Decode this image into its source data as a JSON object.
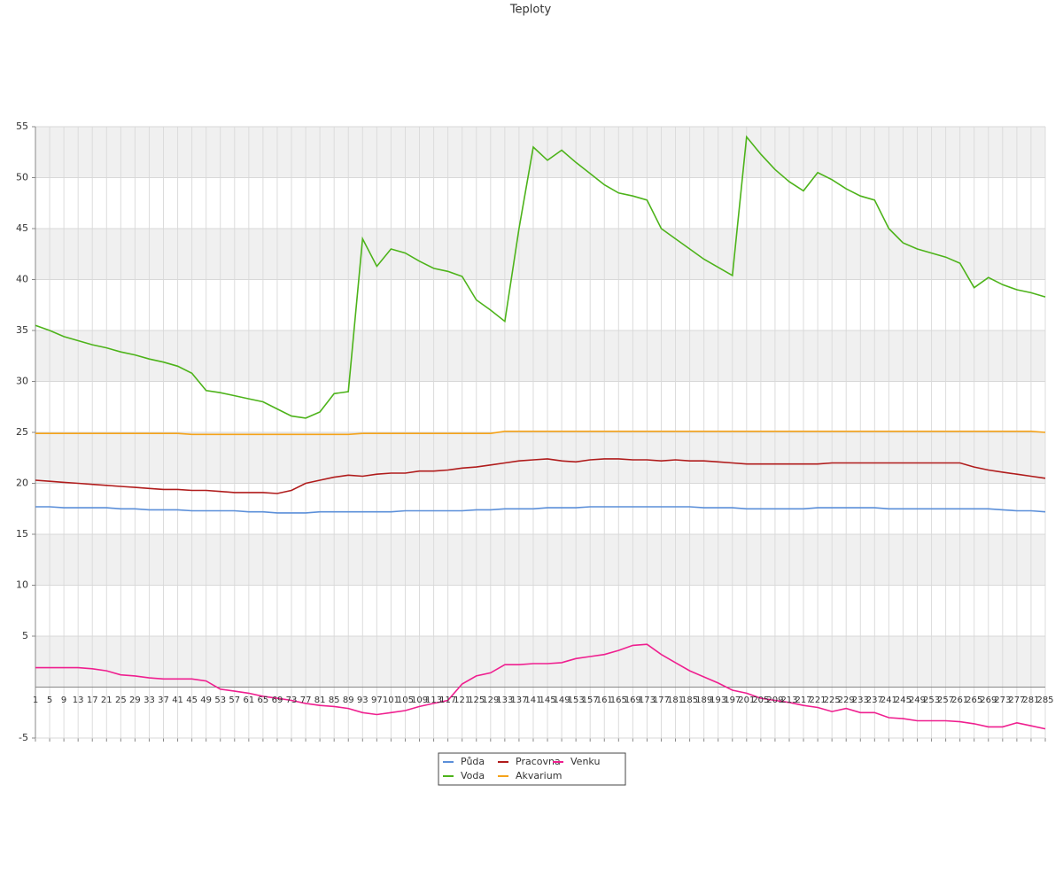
{
  "chart_data": {
    "type": "line",
    "title": "Teploty",
    "categories": [
      "1",
      "5",
      "9",
      "13",
      "17",
      "21",
      "25",
      "29",
      "33",
      "37",
      "41",
      "45",
      "49",
      "53",
      "57",
      "61",
      "65",
      "69",
      "73",
      "77",
      "81",
      "85",
      "89",
      "93",
      "97",
      "101",
      "105",
      "109",
      "113",
      "117",
      "121",
      "125",
      "129",
      "133",
      "137",
      "141",
      "145",
      "149",
      "153",
      "157",
      "161",
      "165",
      "169",
      "173",
      "177",
      "181",
      "185",
      "189",
      "193",
      "197",
      "201",
      "205",
      "209",
      "213",
      "217",
      "221",
      "225",
      "229",
      "233",
      "237",
      "241",
      "245",
      "249",
      "253",
      "257",
      "261",
      "265",
      "269",
      "273",
      "277",
      "281",
      "285"
    ],
    "series": [
      {
        "name": "Půda",
        "color": "#5b8fd9",
        "values": [
          17.7,
          17.7,
          17.6,
          17.6,
          17.6,
          17.6,
          17.5,
          17.5,
          17.4,
          17.4,
          17.4,
          17.3,
          17.3,
          17.3,
          17.3,
          17.2,
          17.2,
          17.1,
          17.1,
          17.1,
          17.2,
          17.2,
          17.2,
          17.2,
          17.2,
          17.2,
          17.3,
          17.3,
          17.3,
          17.3,
          17.3,
          17.4,
          17.4,
          17.5,
          17.5,
          17.5,
          17.6,
          17.6,
          17.6,
          17.7,
          17.7,
          17.7,
          17.7,
          17.7,
          17.7,
          17.7,
          17.7,
          17.6,
          17.6,
          17.6,
          17.5,
          17.5,
          17.5,
          17.5,
          17.5,
          17.6,
          17.6,
          17.6,
          17.6,
          17.6,
          17.5,
          17.5,
          17.5,
          17.5,
          17.5,
          17.5,
          17.5,
          17.5,
          17.4,
          17.3,
          17.3,
          17.2
        ]
      },
      {
        "name": "Voda",
        "color": "#4db31a",
        "values": [
          35.5,
          35.0,
          34.4,
          34.0,
          33.6,
          33.3,
          32.9,
          32.6,
          32.2,
          31.9,
          31.5,
          30.8,
          29.1,
          28.9,
          28.6,
          28.3,
          28.0,
          27.3,
          26.6,
          26.4,
          27.0,
          28.8,
          29.0,
          44.0,
          41.3,
          43.0,
          42.6,
          41.8,
          41.1,
          40.8,
          40.3,
          38.0,
          37.0,
          35.9,
          45.0,
          53.0,
          51.7,
          52.7,
          51.5,
          50.4,
          49.3,
          48.5,
          48.2,
          47.8,
          45.0,
          44.0,
          43.0,
          42.0,
          41.2,
          40.4,
          54.0,
          52.3,
          50.8,
          49.6,
          48.7,
          50.5,
          49.8,
          48.9,
          48.2,
          47.8,
          45.0,
          43.6,
          43.0,
          42.6,
          42.2,
          41.6,
          39.2,
          40.2,
          39.5,
          39.0,
          38.7,
          38.3
        ]
      },
      {
        "name": "Pracovna",
        "color": "#b01c1c",
        "values": [
          20.3,
          20.2,
          20.1,
          20.0,
          19.9,
          19.8,
          19.7,
          19.6,
          19.5,
          19.4,
          19.4,
          19.3,
          19.3,
          19.2,
          19.1,
          19.1,
          19.1,
          19.0,
          19.3,
          20.0,
          20.3,
          20.6,
          20.8,
          20.7,
          20.9,
          21.0,
          21.0,
          21.2,
          21.2,
          21.3,
          21.5,
          21.6,
          21.8,
          22.0,
          22.2,
          22.3,
          22.4,
          22.2,
          22.1,
          22.3,
          22.4,
          22.4,
          22.3,
          22.3,
          22.2,
          22.3,
          22.2,
          22.2,
          22.1,
          22.0,
          21.9,
          21.9,
          21.9,
          21.9,
          21.9,
          21.9,
          22.0,
          22.0,
          22.0,
          22.0,
          22.0,
          22.0,
          22.0,
          22.0,
          22.0,
          22.0,
          21.6,
          21.3,
          21.1,
          20.9,
          20.7,
          20.5
        ]
      },
      {
        "name": "Akvarium",
        "color": "#f5a31a",
        "values": [
          24.9,
          24.9,
          24.9,
          24.9,
          24.9,
          24.9,
          24.9,
          24.9,
          24.9,
          24.9,
          24.9,
          24.8,
          24.8,
          24.8,
          24.8,
          24.8,
          24.8,
          24.8,
          24.8,
          24.8,
          24.8,
          24.8,
          24.8,
          24.9,
          24.9,
          24.9,
          24.9,
          24.9,
          24.9,
          24.9,
          24.9,
          24.9,
          24.9,
          25.1,
          25.1,
          25.1,
          25.1,
          25.1,
          25.1,
          25.1,
          25.1,
          25.1,
          25.1,
          25.1,
          25.1,
          25.1,
          25.1,
          25.1,
          25.1,
          25.1,
          25.1,
          25.1,
          25.1,
          25.1,
          25.1,
          25.1,
          25.1,
          25.1,
          25.1,
          25.1,
          25.1,
          25.1,
          25.1,
          25.1,
          25.1,
          25.1,
          25.1,
          25.1,
          25.1,
          25.1,
          25.1,
          25.0
        ]
      },
      {
        "name": "Venku",
        "color": "#ef1f8f",
        "values": [
          1.9,
          1.9,
          1.9,
          1.9,
          1.8,
          1.6,
          1.2,
          1.1,
          0.9,
          0.8,
          0.8,
          0.8,
          0.6,
          -0.2,
          -0.4,
          -0.6,
          -0.9,
          -1.1,
          -1.3,
          -1.6,
          -1.8,
          -1.9,
          -2.1,
          -2.5,
          -2.7,
          -2.5,
          -2.3,
          -1.9,
          -1.6,
          -1.3,
          0.3,
          1.1,
          1.4,
          2.2,
          2.2,
          2.3,
          2.3,
          2.4,
          2.8,
          3.0,
          3.2,
          3.6,
          4.1,
          4.2,
          3.2,
          2.4,
          1.6,
          1.0,
          0.4,
          -0.3,
          -0.6,
          -1.1,
          -1.3,
          -1.5,
          -1.8,
          -2.0,
          -2.4,
          -2.1,
          -2.5,
          -2.5,
          -3.0,
          -3.1,
          -3.3,
          -3.3,
          -3.3,
          -3.4,
          -3.6,
          -3.9,
          -3.9,
          -3.5,
          -3.8,
          -4.1
        ]
      }
    ],
    "ylim": [
      -5,
      55
    ],
    "yticks": [
      -5,
      5,
      10,
      15,
      20,
      25,
      30,
      35,
      40,
      45,
      50,
      55
    ],
    "grid": true
  }
}
